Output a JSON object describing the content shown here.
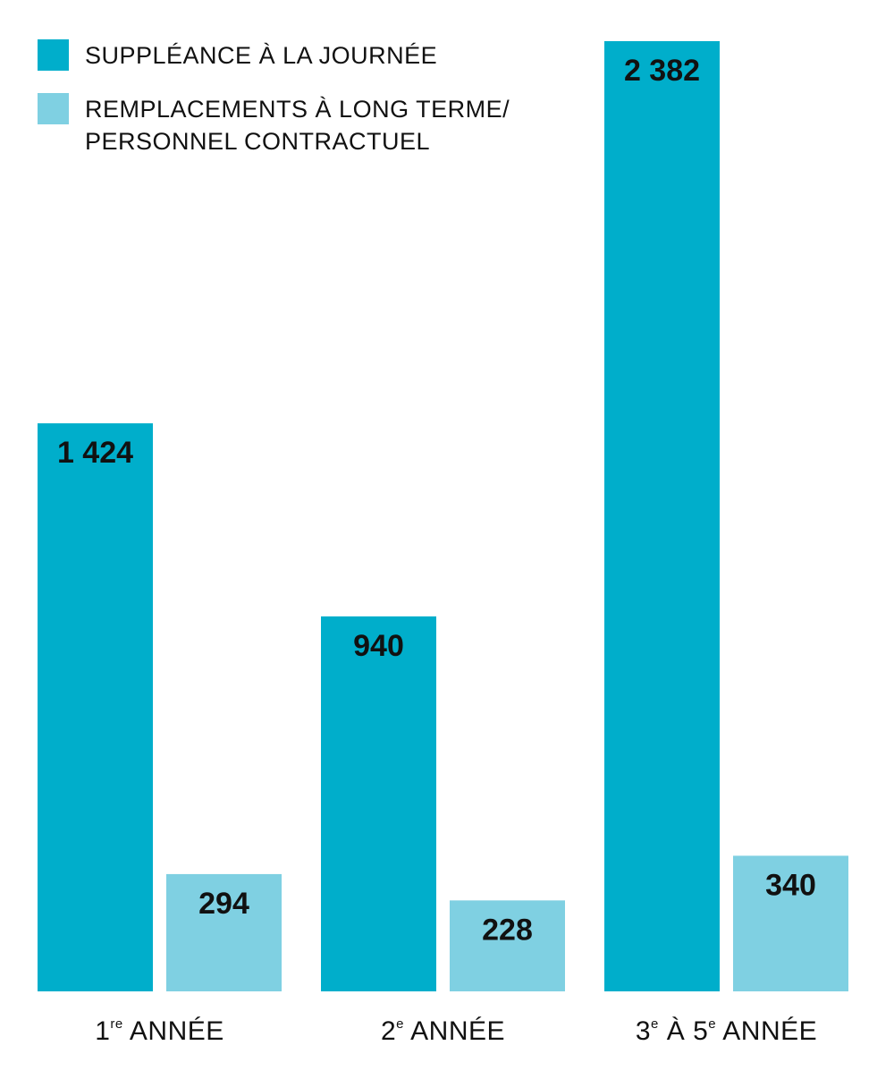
{
  "colors": {
    "daily": "#00aecb",
    "long_term": "#7fd0e2"
  },
  "chart_data": {
    "type": "bar",
    "categories": [
      "1re ANNÉE",
      "2e ANNÉE",
      "3e À 5e ANNÉE"
    ],
    "category_parts": [
      [
        {
          "t": "1"
        },
        {
          "sup": "re"
        },
        {
          "t": " ANNÉE"
        }
      ],
      [
        {
          "t": "2"
        },
        {
          "sup": "e"
        },
        {
          "t": " ANNÉE"
        }
      ],
      [
        {
          "t": "3"
        },
        {
          "sup": "e"
        },
        {
          "t": " À 5"
        },
        {
          "sup": "e"
        },
        {
          "t": " ANNÉE"
        }
      ]
    ],
    "series": [
      {
        "name": "SUPPLÉANCE À LA JOURNÉE",
        "values": [
          1424,
          940,
          2382
        ],
        "labels": [
          "1 424",
          "940",
          "2 382"
        ]
      },
      {
        "name": "REMPLACEMENTS À LONG TERME/ PERSONNEL CONTRACTUEL",
        "values": [
          294,
          228,
          340
        ],
        "labels": [
          "294",
          "228",
          "340"
        ]
      }
    ],
    "ylim": [
      0,
      2382
    ],
    "grid": false,
    "legend": "top-left",
    "title": "",
    "xlabel": "",
    "ylabel": ""
  }
}
